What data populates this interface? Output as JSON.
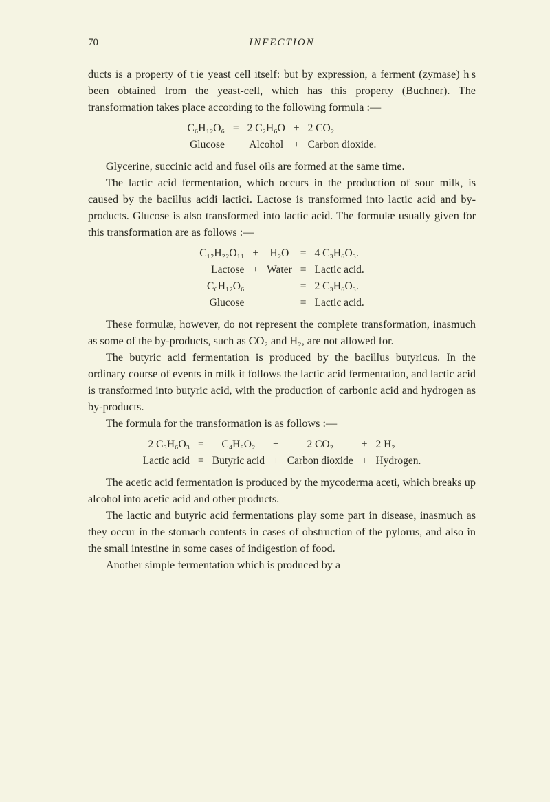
{
  "header": {
    "page_number": "70",
    "running_title": "INFECTION"
  },
  "para1": "ducts is a property of t ie yeast cell itself: but by expression, a ferment (zymase) h s been obtained from the yeast-cell, which has this property (Buchner). The transformation takes place according to the following formula :—",
  "eq1": {
    "r1c1": "C₆H₁₂O₆",
    "r1c2": "=",
    "r1c3": "2 C₂H₆O",
    "r1c4": "+",
    "r1c5": "2 CO₂",
    "r2c1": "Glucose",
    "r2c3": "Alcohol",
    "r2c4": "+",
    "r2c5": "Carbon dioxide."
  },
  "para2": "Glycerine, succinic acid and fusel oils are formed at the same time.",
  "para3": "The lactic acid fermentation, which occurs in the production of sour milk, is caused by the bacillus acidi lactici. Lactose is transformed into lactic acid and by-products. Glucose is also transformed into lactic acid. The formulæ usually given for this transformation are as follows :—",
  "eq2": {
    "r1c1": "C₁₂H₂₂O₁₁",
    "r1c2": "+",
    "r1c3": "H₂O",
    "r1c4": "=",
    "r1c5": "4 C₃H₆O₃.",
    "r2c1": "Lactose",
    "r2c2": "+",
    "r2c3": "Water",
    "r2c4": "=",
    "r2c5": "Lactic acid.",
    "r3c1": "C₆H₁₂O₆",
    "r3c4": "=",
    "r3c5": "2 C₃H₆O₃.",
    "r4c1": "Glucose",
    "r4c4": "=",
    "r4c5": "Lactic acid."
  },
  "para4": "These formulæ, however, do not represent the complete transformation, inasmuch as some of the by-products, such as CO₂ and H₂, are not allowed for.",
  "para5": "The butyric acid fermentation is produced by the bacillus butyricus. In the ordinary course of events in milk it follows the lactic acid fermentation, and lactic acid is transformed into butyric acid, with the production of carbonic acid and hydrogen as by-products.",
  "para6": "The formula for the transformation is as follows :—",
  "eq3": {
    "r1c1": "2 C₃H₆O₃",
    "r1c2": "=",
    "r1c3": "C₄H₈O₂",
    "r1c4": "+",
    "r1c5": "2 CO₂",
    "r1c6": "+",
    "r1c7": "2 H₂",
    "r2c1": "Lactic acid",
    "r2c2": "=",
    "r2c3": "Butyric acid",
    "r2c4": "+",
    "r2c5": "Carbon dioxide",
    "r2c6": "+",
    "r2c7": "Hydrogen."
  },
  "para7": "The acetic acid fermentation is produced by the mycoderma aceti, which breaks up alcohol into acetic acid and other products.",
  "para8": "The lactic and butyric acid fermentations play some part in disease, inasmuch as they occur in the stomach contents in cases of obstruction of the pylorus, and also in the small intestine in some cases of indigestion of food.",
  "para9": "Another simple fermentation which is produced by a"
}
